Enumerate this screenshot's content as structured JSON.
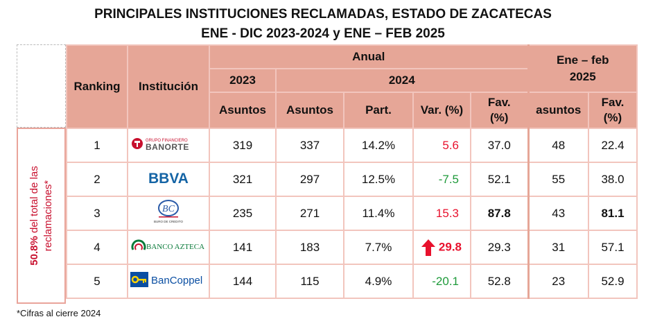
{
  "title_line1": "PRINCIPALES INSTITUCIONES RECLAMADAS, ESTADO DE ZACATECAS",
  "title_line2": "ENE - DIC 2023-2024 y ENE – FEB 2025",
  "side_label_bold": "50.8%",
  "side_label_rest": " del total de las reclamaciones*",
  "headers": {
    "ranking": "Ranking",
    "institucion": "Institución",
    "anual": "Anual",
    "y2023": "2023",
    "y2024": "2024",
    "ene_feb": "Ene – feb 2025",
    "asuntos_2023": "Asuntos",
    "asuntos_2024": "Asuntos",
    "part": "Part.",
    "var": "Var. (%)",
    "fav": "Fav. (%)",
    "asuntos_2025": "asuntos",
    "fav_2025": "Fav. (%)"
  },
  "rows": [
    {
      "rank": "1",
      "logo": "banorte-logo",
      "logo_text_top": "GRUPO FINANCIERO",
      "logo_text": "BANORTE",
      "a2023": "319",
      "a2024": "337",
      "part": "14.2%",
      "var": "5.6",
      "fav": "37.0",
      "a2025": "48",
      "fav2025": "22.4"
    },
    {
      "rank": "2",
      "logo": "bbva-logo",
      "logo_text": "BBVA",
      "a2023": "321",
      "a2024": "297",
      "part": "12.5%",
      "var": "-7.5",
      "fav": "52.1",
      "a2025": "55",
      "fav2025": "38.0"
    },
    {
      "rank": "3",
      "logo": "buro-de-credito-logo",
      "logo_text": "BURO DE CREDITO",
      "a2023": "235",
      "a2024": "271",
      "part": "11.4%",
      "var": "15.3",
      "fav": "87.8",
      "a2025": "43",
      "fav2025": "81.1"
    },
    {
      "rank": "4",
      "logo": "banco-azteca-logo",
      "logo_text": "BANCO AZTECA",
      "a2023": "141",
      "a2024": "183",
      "part": "7.7%",
      "var": "29.8",
      "fav": "29.3",
      "a2025": "31",
      "fav2025": "57.1"
    },
    {
      "rank": "5",
      "logo": "bancoppel-logo",
      "logo_text": "BanCoppel",
      "a2023": "144",
      "a2024": "115",
      "part": "4.9%",
      "var": "-20.1",
      "fav": "52.8",
      "a2025": "23",
      "fav2025": "52.9"
    }
  ],
  "colors": {
    "header_bg": "#e6a697",
    "positive_var": "#e8112d",
    "negative_var": "#1e9a3a"
  },
  "footnote": "*Cifras al cierre 2024"
}
